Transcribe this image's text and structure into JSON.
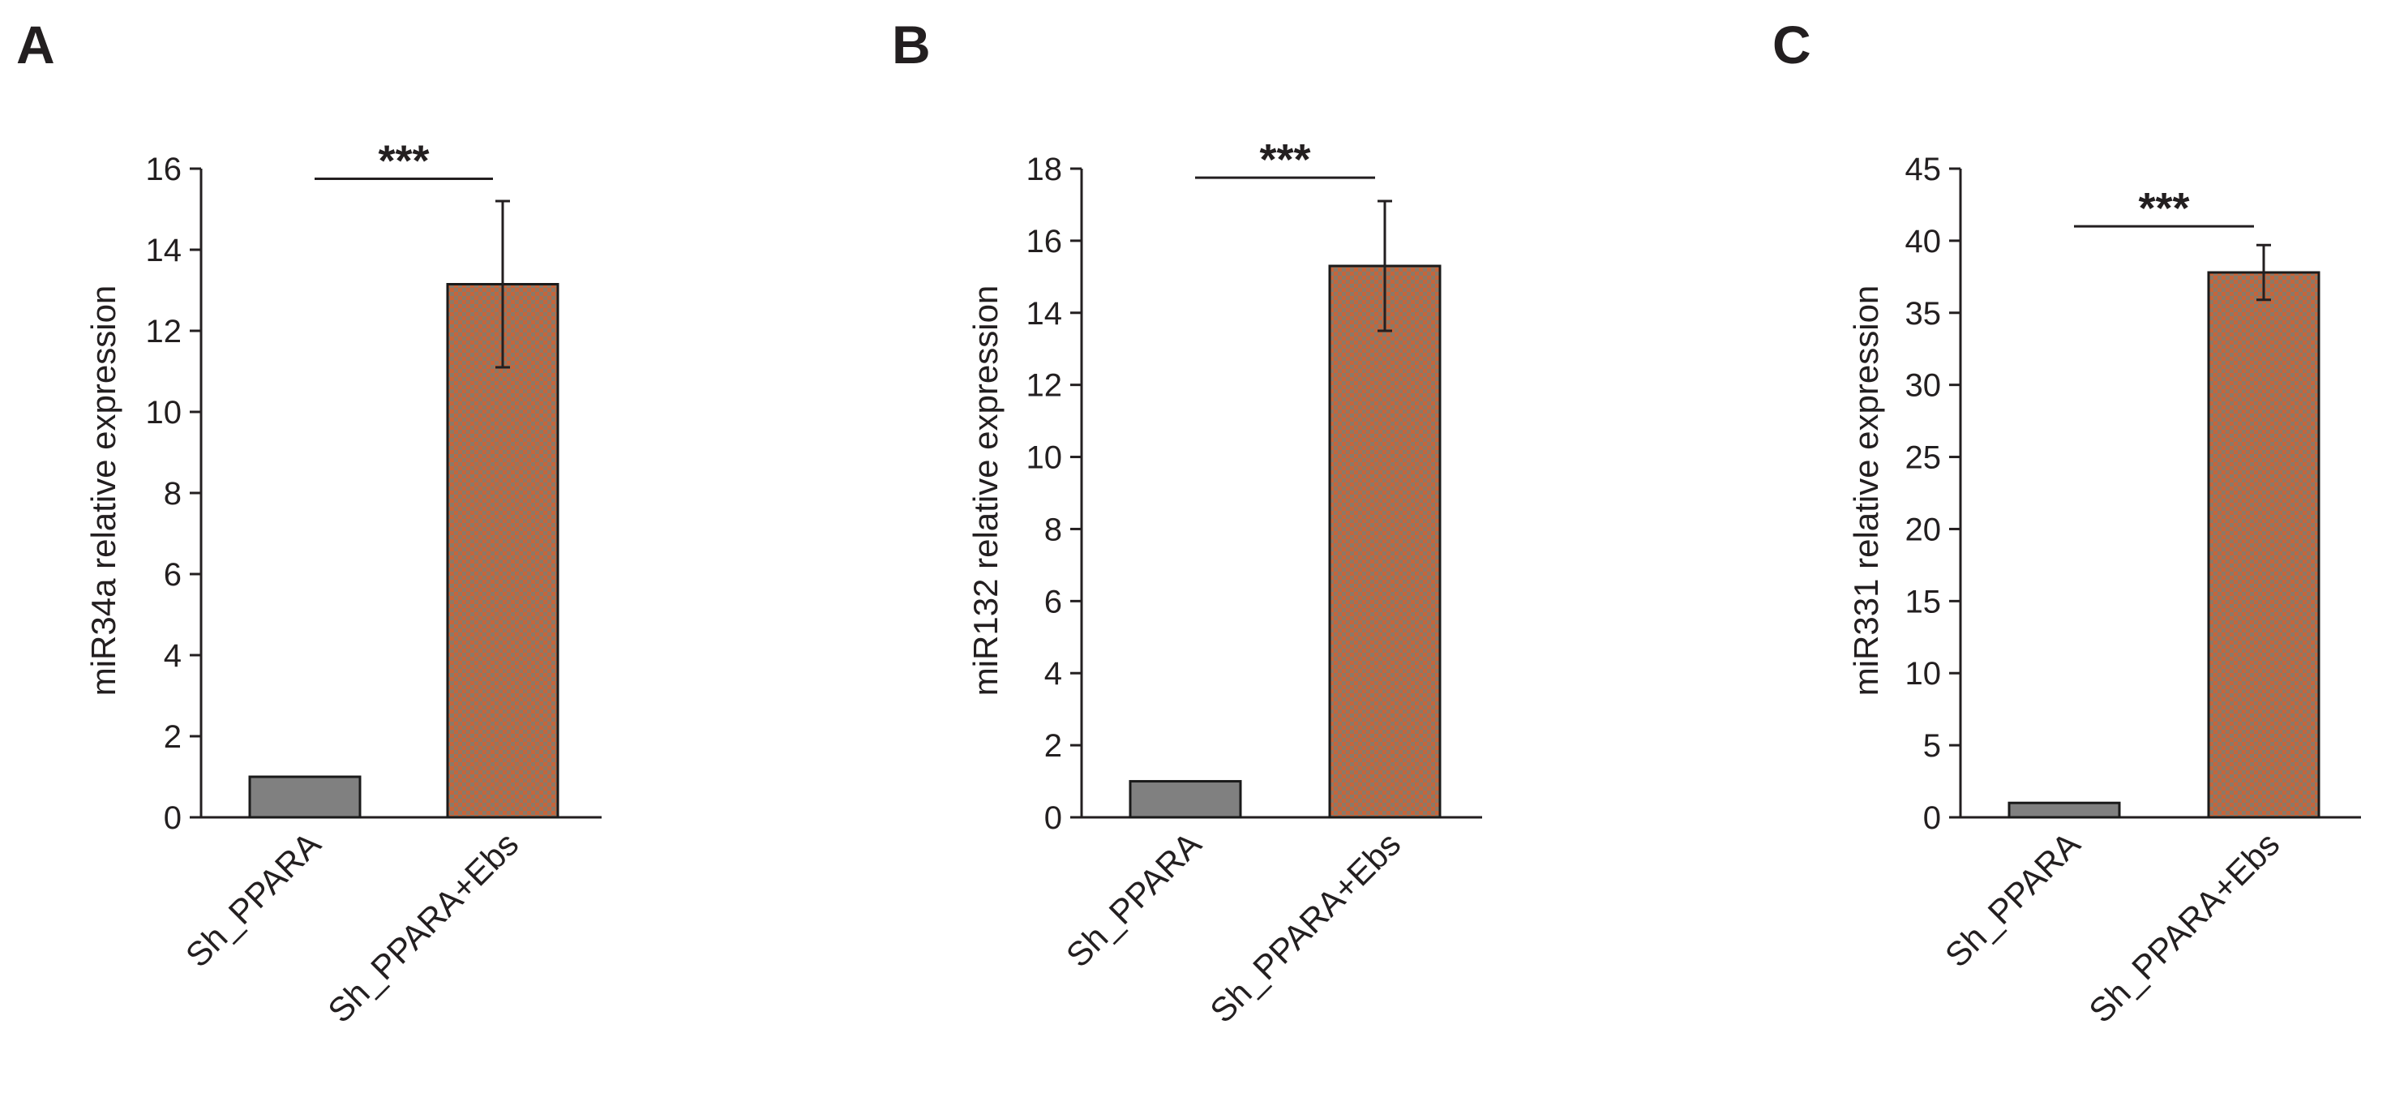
{
  "colors": {
    "control_bar": "#808080",
    "treated_bar_base": "#8a7a68",
    "treated_bar_hatch": "#c8643a",
    "axis": "#231f20"
  },
  "chart_data": [
    {
      "type": "bar",
      "panel": "A",
      "categories": [
        "Sh_PPARA",
        "Sh_PPARA+Ebs"
      ],
      "values": [
        1,
        13.15
      ],
      "errors": [
        0,
        2.05
      ],
      "ylabel": "miR34a relative expression",
      "ylim": [
        0,
        16
      ],
      "ytick_step": 2,
      "yticks": [
        "0",
        "2",
        "4",
        "6",
        "8",
        "10",
        "12",
        "14",
        "16"
      ],
      "significance": "***",
      "significance_level": 15.75
    },
    {
      "type": "bar",
      "panel": "B",
      "categories": [
        "Sh_PPARA",
        "Sh_PPARA+Ebs"
      ],
      "values": [
        1,
        15.3
      ],
      "errors": [
        0,
        1.8
      ],
      "ylabel": "miR132 relative expression",
      "ylim": [
        0,
        18
      ],
      "ytick_step": 2,
      "yticks": [
        "0",
        "2",
        "4",
        "6",
        "8",
        "10",
        "12",
        "14",
        "16",
        "18"
      ],
      "significance": "***",
      "significance_level": 17.75
    },
    {
      "type": "bar",
      "panel": "C",
      "categories": [
        "Sh_PPARA",
        "Sh_PPARA+Ebs"
      ],
      "values": [
        1,
        37.8
      ],
      "errors": [
        0,
        1.9
      ],
      "ylabel": "miR331 relative expression",
      "ylim": [
        0,
        45
      ],
      "ytick_step": 5,
      "yticks": [
        "0",
        "5",
        "10",
        "15",
        "20",
        "25",
        "30",
        "35",
        "40",
        "45"
      ],
      "significance": "***",
      "significance_level": 41
    }
  ]
}
